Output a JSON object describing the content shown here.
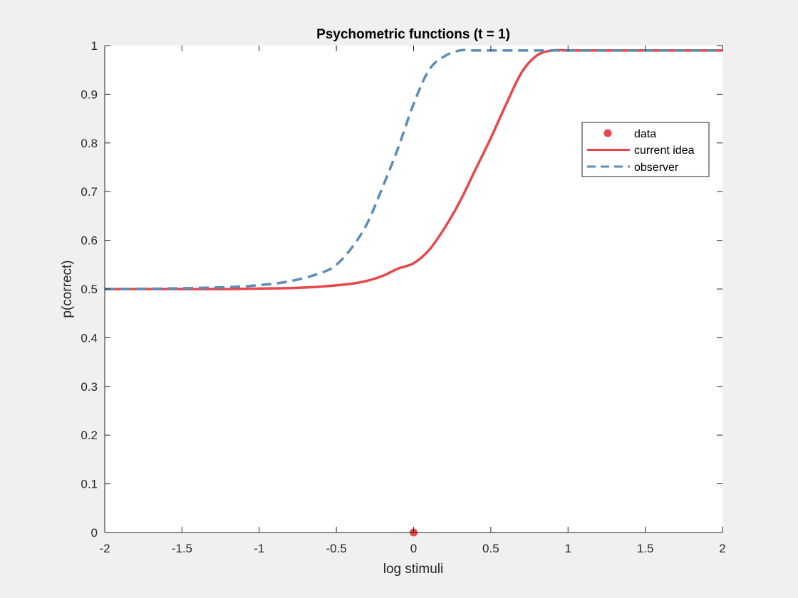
{
  "chart_data": {
    "type": "line",
    "title": "Psychometric functions (t = 1)",
    "xlabel": "log stimuli",
    "ylabel": "p(correct)",
    "xlim": [
      -2,
      2
    ],
    "ylim": [
      0,
      1
    ],
    "xticks": [
      "-2",
      "-1.5",
      "-1",
      "-0.5",
      "0",
      "0.5",
      "1",
      "1.5",
      "2"
    ],
    "yticks": [
      "0",
      "0.1",
      "0.2",
      "0.3",
      "0.4",
      "0.5",
      "0.6",
      "0.7",
      "0.8",
      "0.9",
      "1"
    ],
    "grid": false,
    "legend_position": "top-right",
    "series": [
      {
        "name": "data",
        "style": "marker",
        "color": "#e8464a",
        "points": [
          [
            0,
            0
          ]
        ]
      },
      {
        "name": "current idea",
        "style": "solid",
        "color": "#e8464a",
        "x": [
          -2,
          -1.8,
          -1.6,
          -1.4,
          -1.2,
          -1.0,
          -0.8,
          -0.6,
          -0.4,
          -0.3,
          -0.2,
          -0.1,
          0.0,
          0.1,
          0.2,
          0.3,
          0.4,
          0.5,
          0.6,
          0.7,
          0.8,
          0.9,
          1.0,
          1.2,
          1.4,
          1.6,
          1.8,
          2.0
        ],
        "y": [
          0.5,
          0.5,
          0.5,
          0.5,
          0.5,
          0.501,
          0.502,
          0.505,
          0.511,
          0.517,
          0.527,
          0.542,
          0.553,
          0.58,
          0.625,
          0.68,
          0.745,
          0.81,
          0.88,
          0.945,
          0.98,
          0.99,
          0.99,
          0.99,
          0.99,
          0.99,
          0.99,
          0.99
        ]
      },
      {
        "name": "observer",
        "style": "dashed",
        "color": "#5b8db8",
        "x": [
          -2,
          -1.6,
          -1.2,
          -1.0,
          -0.8,
          -0.6,
          -0.5,
          -0.4,
          -0.3,
          -0.2,
          -0.1,
          0.0,
          0.1,
          0.2,
          0.3,
          0.4,
          0.6,
          0.8,
          1.0,
          1.5,
          2.0
        ],
        "y": [
          0.5,
          0.501,
          0.504,
          0.508,
          0.516,
          0.533,
          0.55,
          0.585,
          0.635,
          0.71,
          0.79,
          0.88,
          0.95,
          0.978,
          0.99,
          0.99,
          0.99,
          0.99,
          0.99,
          0.99,
          0.99
        ]
      }
    ]
  }
}
